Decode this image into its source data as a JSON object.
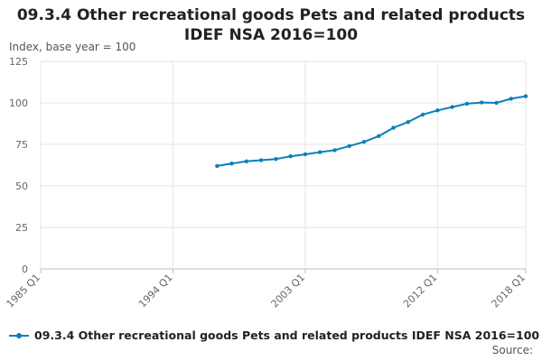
{
  "chart_data": {
    "type": "line",
    "title_line1": "09.3.4 Other recreational goods Pets and related products",
    "title_line2": "IDEF NSA 2016=100",
    "ylabel": "Index, base year = 100",
    "ylim": [
      0,
      125
    ],
    "yticks": [
      "0",
      "25",
      "50",
      "75",
      "100",
      "125"
    ],
    "xticks": [
      "1985 Q1",
      "1994 Q1",
      "2003 Q1",
      "2012 Q1",
      "2018 Q1"
    ],
    "x_start": "1985 Q1",
    "x_end": "2018 Q1",
    "grid": true,
    "legend_position": "bottom-left",
    "series": [
      {
        "name": "09.3.4 Other recreational goods Pets and related products IDEF NSA 2016=100",
        "color": "#0b7fbd",
        "points": [
          {
            "x": "1997 Q1",
            "y": 62.0
          },
          {
            "x": "1998 Q1",
            "y": 63.5
          },
          {
            "x": "1999 Q1",
            "y": 64.8
          },
          {
            "x": "2000 Q1",
            "y": 65.5
          },
          {
            "x": "2001 Q1",
            "y": 66.2
          },
          {
            "x": "2002 Q1",
            "y": 67.8
          },
          {
            "x": "2003 Q1",
            "y": 69.0
          },
          {
            "x": "2004 Q1",
            "y": 70.3
          },
          {
            "x": "2005 Q1",
            "y": 71.5
          },
          {
            "x": "2006 Q1",
            "y": 74.0
          },
          {
            "x": "2007 Q1",
            "y": 76.5
          },
          {
            "x": "2008 Q1",
            "y": 80.0
          },
          {
            "x": "2009 Q1",
            "y": 85.0
          },
          {
            "x": "2010 Q1",
            "y": 88.5
          },
          {
            "x": "2011 Q1",
            "y": 93.0
          },
          {
            "x": "2012 Q1",
            "y": 95.5
          },
          {
            "x": "2013 Q1",
            "y": 97.5
          },
          {
            "x": "2014 Q1",
            "y": 99.5
          },
          {
            "x": "2015 Q1",
            "y": 100.2
          },
          {
            "x": "2016 Q1",
            "y": 100.0
          },
          {
            "x": "2017 Q1",
            "y": 102.5
          },
          {
            "x": "2018 Q1",
            "y": 104.0
          }
        ]
      }
    ]
  },
  "footer": {
    "source_label": "Source:"
  }
}
